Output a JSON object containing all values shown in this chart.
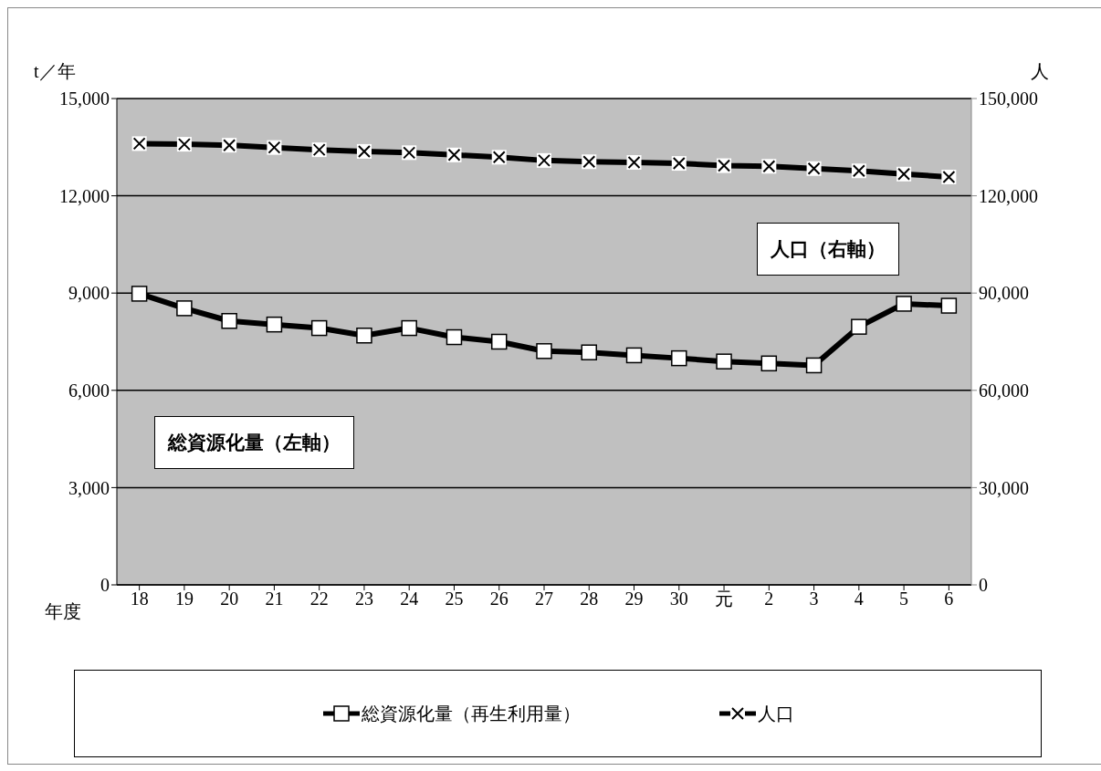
{
  "chart_data": {
    "type": "line",
    "ylabel": "t／年",
    "y2label": "人",
    "xlabel": "年度",
    "categories": [
      "18",
      "19",
      "20",
      "21",
      "22",
      "23",
      "24",
      "25",
      "26",
      "27",
      "28",
      "29",
      "30",
      "元",
      "2",
      "3",
      "4",
      "5",
      "6"
    ],
    "series": [
      {
        "name": "総資源化量（再生利用量）",
        "color": "#000000",
        "marker": "square",
        "values": [
          8980,
          8530,
          8140,
          8030,
          7920,
          7690,
          7920,
          7640,
          7500,
          7210,
          7170,
          7080,
          6990,
          6890,
          6830,
          6770,
          7960,
          8670,
          8610
        ]
      },
      {
        "name": "人口",
        "color": "#000000",
        "marker": "cross",
        "axis": "y2",
        "values": [
          136100,
          135900,
          135600,
          134900,
          134200,
          133700,
          133300,
          132600,
          131900,
          130900,
          130500,
          130300,
          130000,
          129300,
          129100,
          128400,
          127700,
          126700,
          125800
        ]
      }
    ],
    "ylim": [
      0,
      15000
    ],
    "yticks": [
      0,
      {
        "value": 3000,
        "label": "3,000"
      },
      {
        "value": 6000,
        "label": "6,000"
      },
      {
        "value": 9000,
        "label": "9,000"
      },
      {
        "value": 12000,
        "label": "12,000"
      },
      {
        "value": 15000,
        "label": "15,000"
      }
    ],
    "y2lim": [
      0,
      150000
    ],
    "y2ticks": [
      0,
      {
        "value": 30000,
        "label": "30,000"
      },
      {
        "value": 60000,
        "label": "60,000"
      },
      {
        "value": 90000,
        "label": "90,000"
      },
      {
        "value": 120000,
        "label": "120,000"
      },
      {
        "value": 150000,
        "label": "150,000"
      }
    ],
    "grid": "y",
    "legend": "bottom",
    "line_style": "solid",
    "annotations": [
      "総資源化量（左軸）",
      "人口（右軸）"
    ]
  }
}
